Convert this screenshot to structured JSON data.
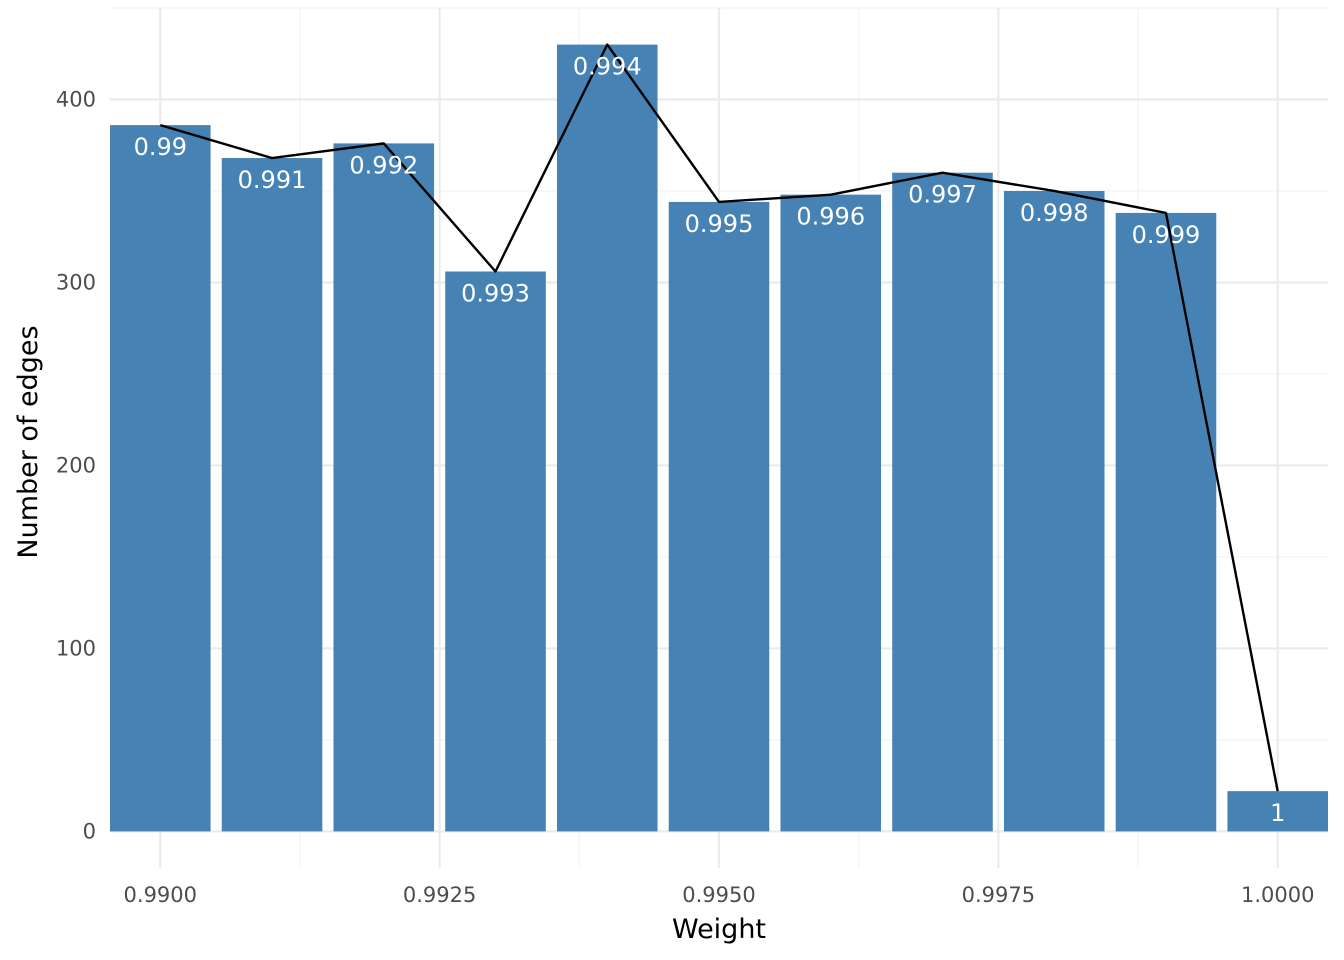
{
  "chart_data": {
    "type": "bar",
    "xlabel": "Weight",
    "ylabel": "Number of edges",
    "xlim": [
      0.98955,
      1.00045
    ],
    "ylim": [
      -20,
      450
    ],
    "x_ticks": [
      {
        "value": 0.99,
        "label": "0.9900"
      },
      {
        "value": 0.9925,
        "label": "0.9925"
      },
      {
        "value": 0.995,
        "label": "0.9950"
      },
      {
        "value": 0.9975,
        "label": "0.9975"
      },
      {
        "value": 1.0,
        "label": "1.0000"
      }
    ],
    "x_minor_ticks": [
      0.99125,
      0.99375,
      0.99625,
      0.99875
    ],
    "y_ticks": [
      {
        "value": 0,
        "label": "0"
      },
      {
        "value": 100,
        "label": "100"
      },
      {
        "value": 200,
        "label": "200"
      },
      {
        "value": 300,
        "label": "300"
      },
      {
        "value": 400,
        "label": "400"
      }
    ],
    "y_minor_ticks": [
      50,
      150,
      250,
      350,
      450
    ],
    "bar_width": 0.0009,
    "bars": [
      {
        "x": 0.99,
        "value": 386,
        "label": "0.99"
      },
      {
        "x": 0.991,
        "value": 368,
        "label": "0.991"
      },
      {
        "x": 0.992,
        "value": 376,
        "label": "0.992"
      },
      {
        "x": 0.993,
        "value": 306,
        "label": "0.993"
      },
      {
        "x": 0.994,
        "value": 430,
        "label": "0.994"
      },
      {
        "x": 0.995,
        "value": 344,
        "label": "0.995"
      },
      {
        "x": 0.996,
        "value": 348,
        "label": "0.996"
      },
      {
        "x": 0.997,
        "value": 360,
        "label": "0.997"
      },
      {
        "x": 0.998,
        "value": 350,
        "label": "0.998"
      },
      {
        "x": 0.999,
        "value": 338,
        "label": "0.999"
      },
      {
        "x": 1.0,
        "value": 22,
        "label": "1"
      }
    ],
    "bar_color": "#4682B4",
    "line_color": "#000000",
    "grid": true,
    "legend": "none"
  }
}
